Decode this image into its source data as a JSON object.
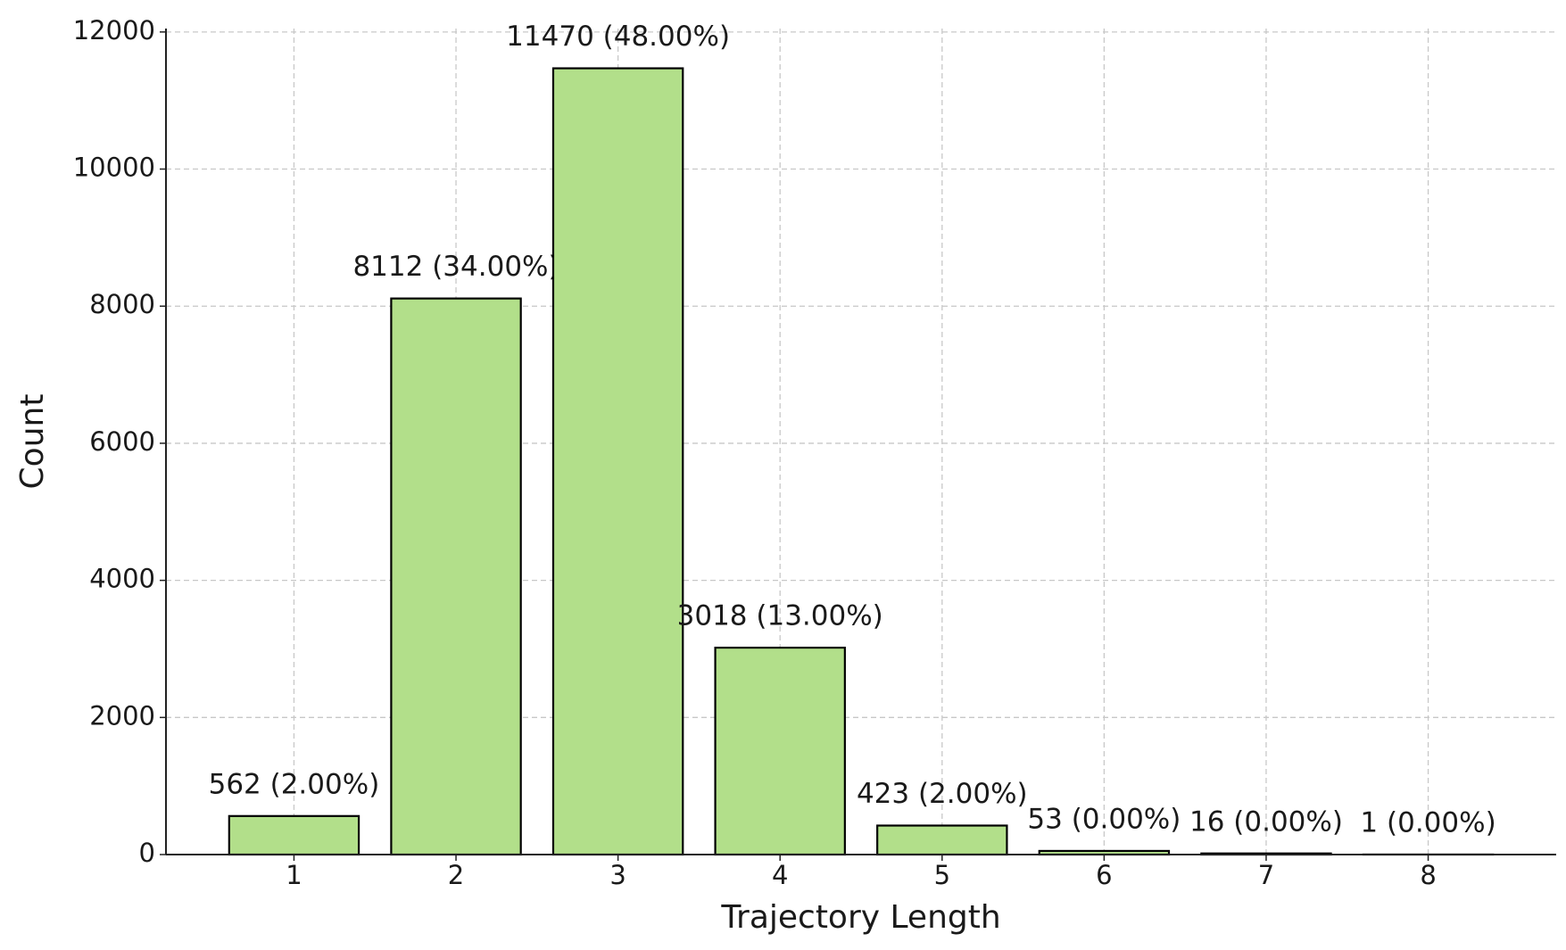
{
  "chart_data": {
    "type": "bar",
    "x_label": "Trajectory Length",
    "y_label": "Count",
    "categories": [
      "1",
      "2",
      "3",
      "4",
      "5",
      "6",
      "7",
      "8"
    ],
    "values": [
      562,
      8112,
      11470,
      3018,
      423,
      53,
      16,
      1
    ],
    "value_labels": [
      "562 (2.00%)",
      "8112 (34.00%)",
      "11470 (48.00%)",
      "3018 (13.00%)",
      "423 (2.00%)",
      "53 (0.00%)",
      "16 (0.00%)",
      "1 (0.00%)"
    ],
    "color": "#b2df8a",
    "edge_color": "#000000",
    "ylim": [
      0,
      12050
    ],
    "yticks": [
      0,
      2000,
      4000,
      6000,
      8000,
      10000,
      12000
    ],
    "grid": true
  }
}
